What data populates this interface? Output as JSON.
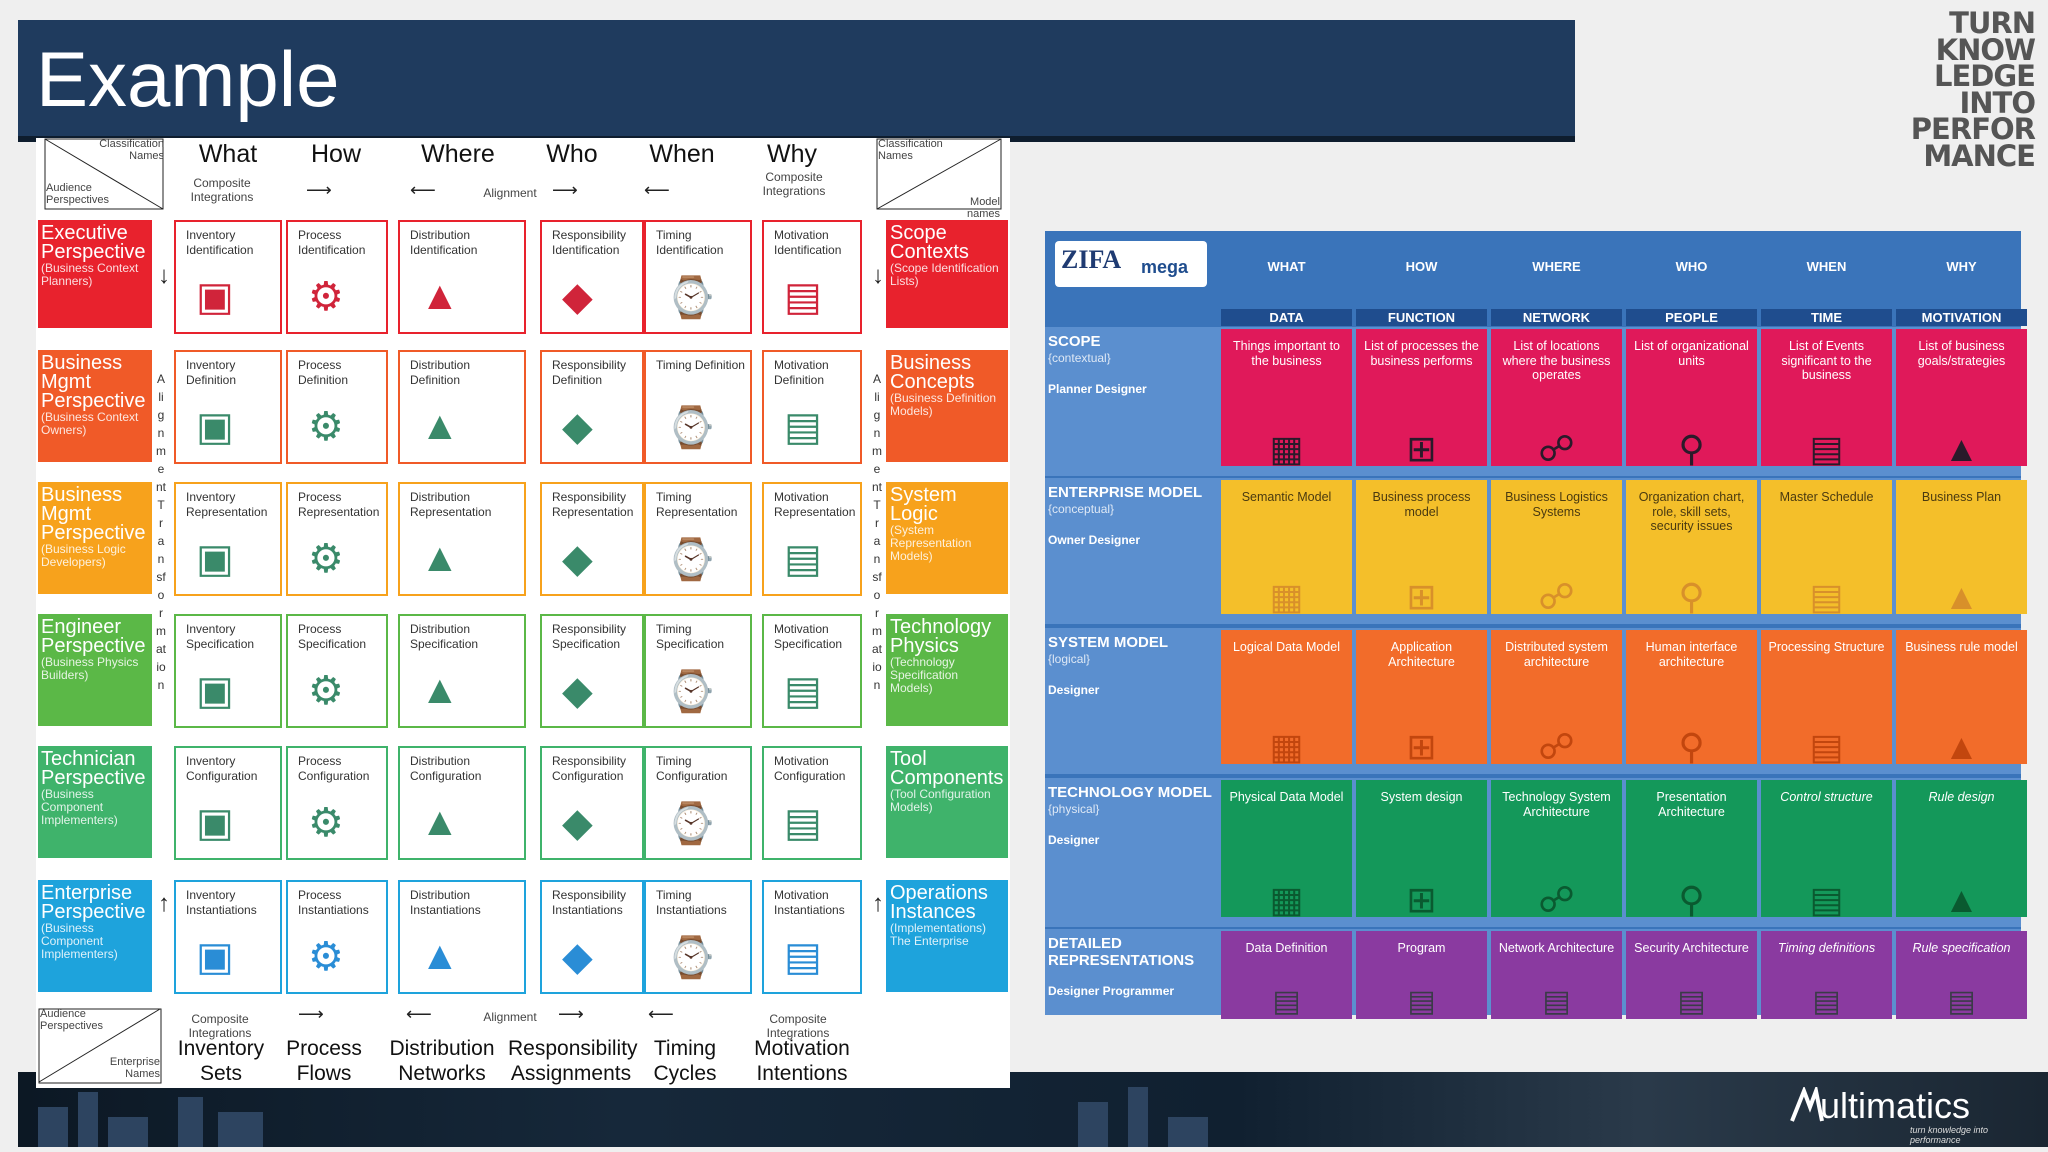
{
  "header": {
    "title": "Example"
  },
  "brand": {
    "lines": [
      "TURN",
      "KNOW",
      "LEDGE",
      "INTO",
      "PERFOR",
      "MANCE"
    ]
  },
  "logo": {
    "name": "ultimatics",
    "tagline": "turn knowledge into performance"
  },
  "zachman": {
    "corner_top_left": {
      "top": "Classification Names",
      "bottom": "Audience Perspectives"
    },
    "corner_top_right": {
      "top": "Classification Names",
      "bottom": "Model names"
    },
    "columns": [
      "What",
      "How",
      "Where",
      "Who",
      "When",
      "Why"
    ],
    "top_left_note": "Composite Integrations",
    "top_right_note": "Composite Integrations",
    "alignment": "Alignment",
    "rows": [
      {
        "label": "Executive Perspective",
        "sub": "(Business Context Planners)",
        "right": "Scope Contexts",
        "right_sub": "(Scope Identification Lists)",
        "color": "#e8222d",
        "cells": [
          "Inventory Identification",
          "Process Identification",
          "Distribution Identification",
          "Responsibility Identification",
          "Timing Identification",
          "Motivation Identification"
        ]
      },
      {
        "label": "Business Mgmt Perspective",
        "sub": "(Business Context Owners)",
        "right": "Business Concepts",
        "right_sub": "(Business Definition Models)",
        "color": "#f05a28",
        "cells": [
          "Inventory Definition",
          "Process Definition",
          "Distribution Definition",
          "Responsibility Definition",
          "Timing Definition",
          "Motivation Definition"
        ]
      },
      {
        "label": "Business Mgmt Perspective",
        "sub": "(Business Logic Developers)",
        "right": "System Logic",
        "right_sub": "(System Representation Models)",
        "color": "#f7a21c",
        "cells": [
          "Inventory Representation",
          "Process Representation",
          "Distribution Representation",
          "Responsibility Representation",
          "Timing Representation",
          "Motivation Representation"
        ]
      },
      {
        "label": "Engineer Perspective",
        "sub": "(Business Physics Builders)",
        "right": "Technology Physics",
        "right_sub": "(Technology Specification Models)",
        "color": "#5bb847",
        "cells": [
          "Inventory Specification",
          "Process Specification",
          "Distribution Specification",
          "Responsibility Specification",
          "Timing Specification",
          "Motivation Specification"
        ]
      },
      {
        "label": "Technician Perspective",
        "sub": "(Business Component Implementers)",
        "right": "Tool Components",
        "right_sub": "(Tool Configuration Models)",
        "color": "#3fb36b",
        "cells": [
          "Inventory Configuration",
          "Process Configuration",
          "Distribution Configuration",
          "Responsibility Configuration",
          "Timing Configuration",
          "Motivation Configuration"
        ]
      },
      {
        "label": "Enterprise Perspective",
        "sub": "(Business Component Implementers)",
        "right": "Operations Instances",
        "right_sub": "(Implementations) The Enterprise",
        "color": "#1ea3dc",
        "cells": [
          "Inventory Instantiations",
          "Process Instantiations",
          "Distribution Instantiations",
          "Responsibility Instantiations",
          "Timing Instantiations",
          "Motivation Instantiations"
        ]
      }
    ],
    "left_vertical": "Alignment Transformation",
    "right_vertical": "Alignment Transformation",
    "bottom_corner": {
      "top": "Audience Perspectives",
      "bottom": "Enterprise Names"
    },
    "bottom_labels": [
      "Inventory Sets",
      "Process Flows",
      "Distribution Networks",
      "Responsibility Assignments",
      "Timing Cycles",
      "Motivation Intentions"
    ]
  },
  "zifa": {
    "logo_text": "ZIFA",
    "logo_sub": "mega",
    "columns": [
      "WHAT",
      "HOW",
      "WHERE",
      "WHO",
      "WHEN",
      "WHY"
    ],
    "subcolumns": [
      "DATA",
      "FUNCTION",
      "NETWORK",
      "PEOPLE",
      "TIME",
      "MOTIVATION"
    ],
    "rows": [
      {
        "title": "SCOPE",
        "ctx": "{contextual}",
        "roles": "Planner Designer",
        "color": "#e0195a",
        "cells": [
          "Things important to the business",
          "List of processes the business performs",
          "List of locations where the business operates",
          "List of organizational units",
          "List of Events significant to the business",
          "List of business goals/strategies"
        ]
      },
      {
        "title": "ENTERPRISE MODEL",
        "ctx": "{conceptual}",
        "roles": "Owner Designer",
        "color": "#f4bf2a",
        "cells": [
          "Semantic Model",
          "Business process model",
          "Business Logistics Systems",
          "Organization chart, role, skill sets, security issues",
          "Master Schedule",
          "Business Plan"
        ]
      },
      {
        "title": "SYSTEM MODEL",
        "ctx": "{logical}",
        "roles": "Designer",
        "color": "#f26c2a",
        "cells": [
          "Logical Data Model",
          "Application Architecture",
          "Distributed system architecture",
          "Human interface architecture",
          "Processing Structure",
          "Business rule model"
        ]
      },
      {
        "title": "TECHNOLOGY MODEL",
        "ctx": "{physical}",
        "roles": "Designer",
        "color": "#14985a",
        "cells": [
          "Physical Data Model",
          "System design",
          "Technology System Architecture",
          "Presentation Architecture",
          "Control structure",
          "Rule design"
        ]
      },
      {
        "title": "DETAILED REPRESENTATIONS",
        "ctx": "",
        "roles": "Designer Programmer",
        "color": "#8a3aa0",
        "cells": [
          "Data Definition",
          "Program",
          "Network Architecture",
          "Security Architecture",
          "Timing definitions",
          "Rule specification"
        ]
      }
    ]
  }
}
